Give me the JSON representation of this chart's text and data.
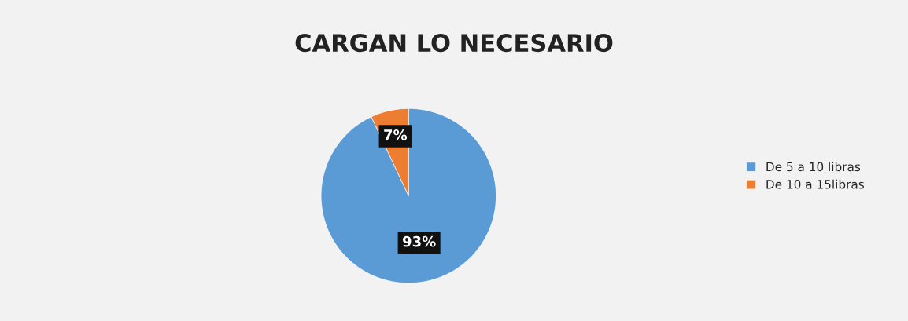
{
  "chart_data": {
    "type": "pie",
    "title": "CARGAN LO NECESARIO",
    "categories": [
      "De 5 a 10 libras",
      "De 10 a 15libras"
    ],
    "values": [
      93,
      7
    ],
    "colors": [
      "#5b9bd5",
      "#ed7d31"
    ],
    "value_labels": [
      "93%",
      "7%"
    ],
    "legend": "right"
  }
}
